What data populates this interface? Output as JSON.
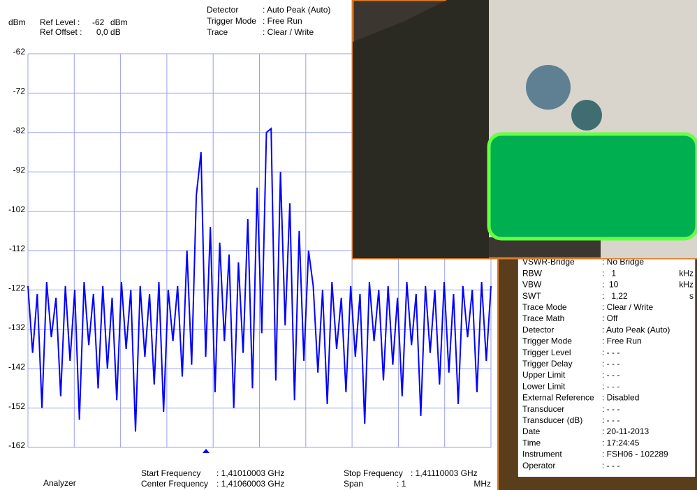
{
  "header": {
    "unit": "dBm",
    "ref_level_label": "Ref Level :",
    "ref_level": "-62",
    "ref_level_unit": "dBm",
    "ref_offset_label": "Ref Offset :",
    "ref_offset": "0,0 dB",
    "settings": [
      [
        "Detector",
        ": Auto Peak (Auto)"
      ],
      [
        "Trigger Mode",
        ": Free Run"
      ],
      [
        "Trace",
        ": Clear / Write"
      ]
    ]
  },
  "chart_data": {
    "type": "line",
    "color": "#0000ff",
    "ylim": [
      -162,
      -62
    ],
    "yticks": [
      -62,
      -72,
      -82,
      -92,
      -102,
      -112,
      -122,
      -132,
      -142,
      -152,
      -162
    ],
    "grid": true,
    "values": [
      -121,
      -138,
      -123,
      -152,
      -120,
      -134,
      -124,
      -149,
      -121,
      -140,
      -122,
      -155,
      -120,
      -136,
      -123,
      -147,
      -121,
      -142,
      -124,
      -150,
      -120,
      -137,
      -122,
      -158,
      -121,
      -139,
      -123,
      -146,
      -120,
      -153,
      -122,
      -135,
      -121,
      -144,
      -112,
      -141,
      -98,
      -87,
      -139,
      -106,
      -148,
      -110,
      -135,
      -113,
      -152,
      -115,
      -138,
      -104,
      -147,
      -96,
      -133,
      -82,
      -81,
      -145,
      -92,
      -131,
      -100,
      -150,
      -107,
      -140,
      -112,
      -121,
      -143,
      -122,
      -151,
      -120,
      -137,
      -124,
      -148,
      -121,
      -139,
      -123,
      -156,
      -120,
      -135,
      -122,
      -145,
      -121,
      -141,
      -124,
      -149,
      -120,
      -136,
      -123,
      -154,
      -121,
      -138,
      -122,
      -146,
      -120,
      -143,
      -123,
      -151,
      -121,
      -134,
      -122,
      -148,
      -120,
      -140,
      -121
    ]
  },
  "footer": {
    "mode": "Analyzer",
    "frequencies": [
      [
        "Start Frequency",
        ": 1,41010003 GHz"
      ],
      [
        "Center Frequency",
        ": 1,41060003 GHz"
      ],
      [
        "Stop Frequency",
        ": 1,41110003 GHz"
      ],
      [
        "Span",
        ": 1",
        "MHz"
      ]
    ]
  },
  "info_panel": {
    "rows": [
      [
        "VSWR-Bridge",
        ": No Bridge"
      ],
      [
        "RBW",
        ":   1",
        "kHz"
      ],
      [
        "VBW",
        ":  10",
        "kHz"
      ],
      [
        "SWT",
        ":   1,22",
        "s"
      ],
      [
        "Trace Mode",
        ": Clear / Write"
      ],
      [
        "Trace Math",
        ": Off"
      ],
      [
        "Detector",
        ": Auto Peak (Auto)"
      ],
      [
        "Trigger Mode",
        ": Free Run"
      ],
      [
        "Trigger Level",
        ": - - -"
      ],
      [
        "Trigger Delay",
        ": - - -"
      ],
      [
        "Upper Limit",
        ": - - -"
      ],
      [
        "Lower Limit",
        ": - - -"
      ],
      [
        "External Reference",
        ": Disabled"
      ],
      [
        "Transducer",
        ": - - -"
      ],
      [
        "Transducer (dB)",
        ": - - -"
      ],
      [
        "Date",
        ": 20-11-2013"
      ],
      [
        "Time",
        ": 17:24:45"
      ],
      [
        "Instrument",
        ": FSH06 - 102289"
      ],
      [
        "Operator",
        ": - - -"
      ]
    ]
  }
}
